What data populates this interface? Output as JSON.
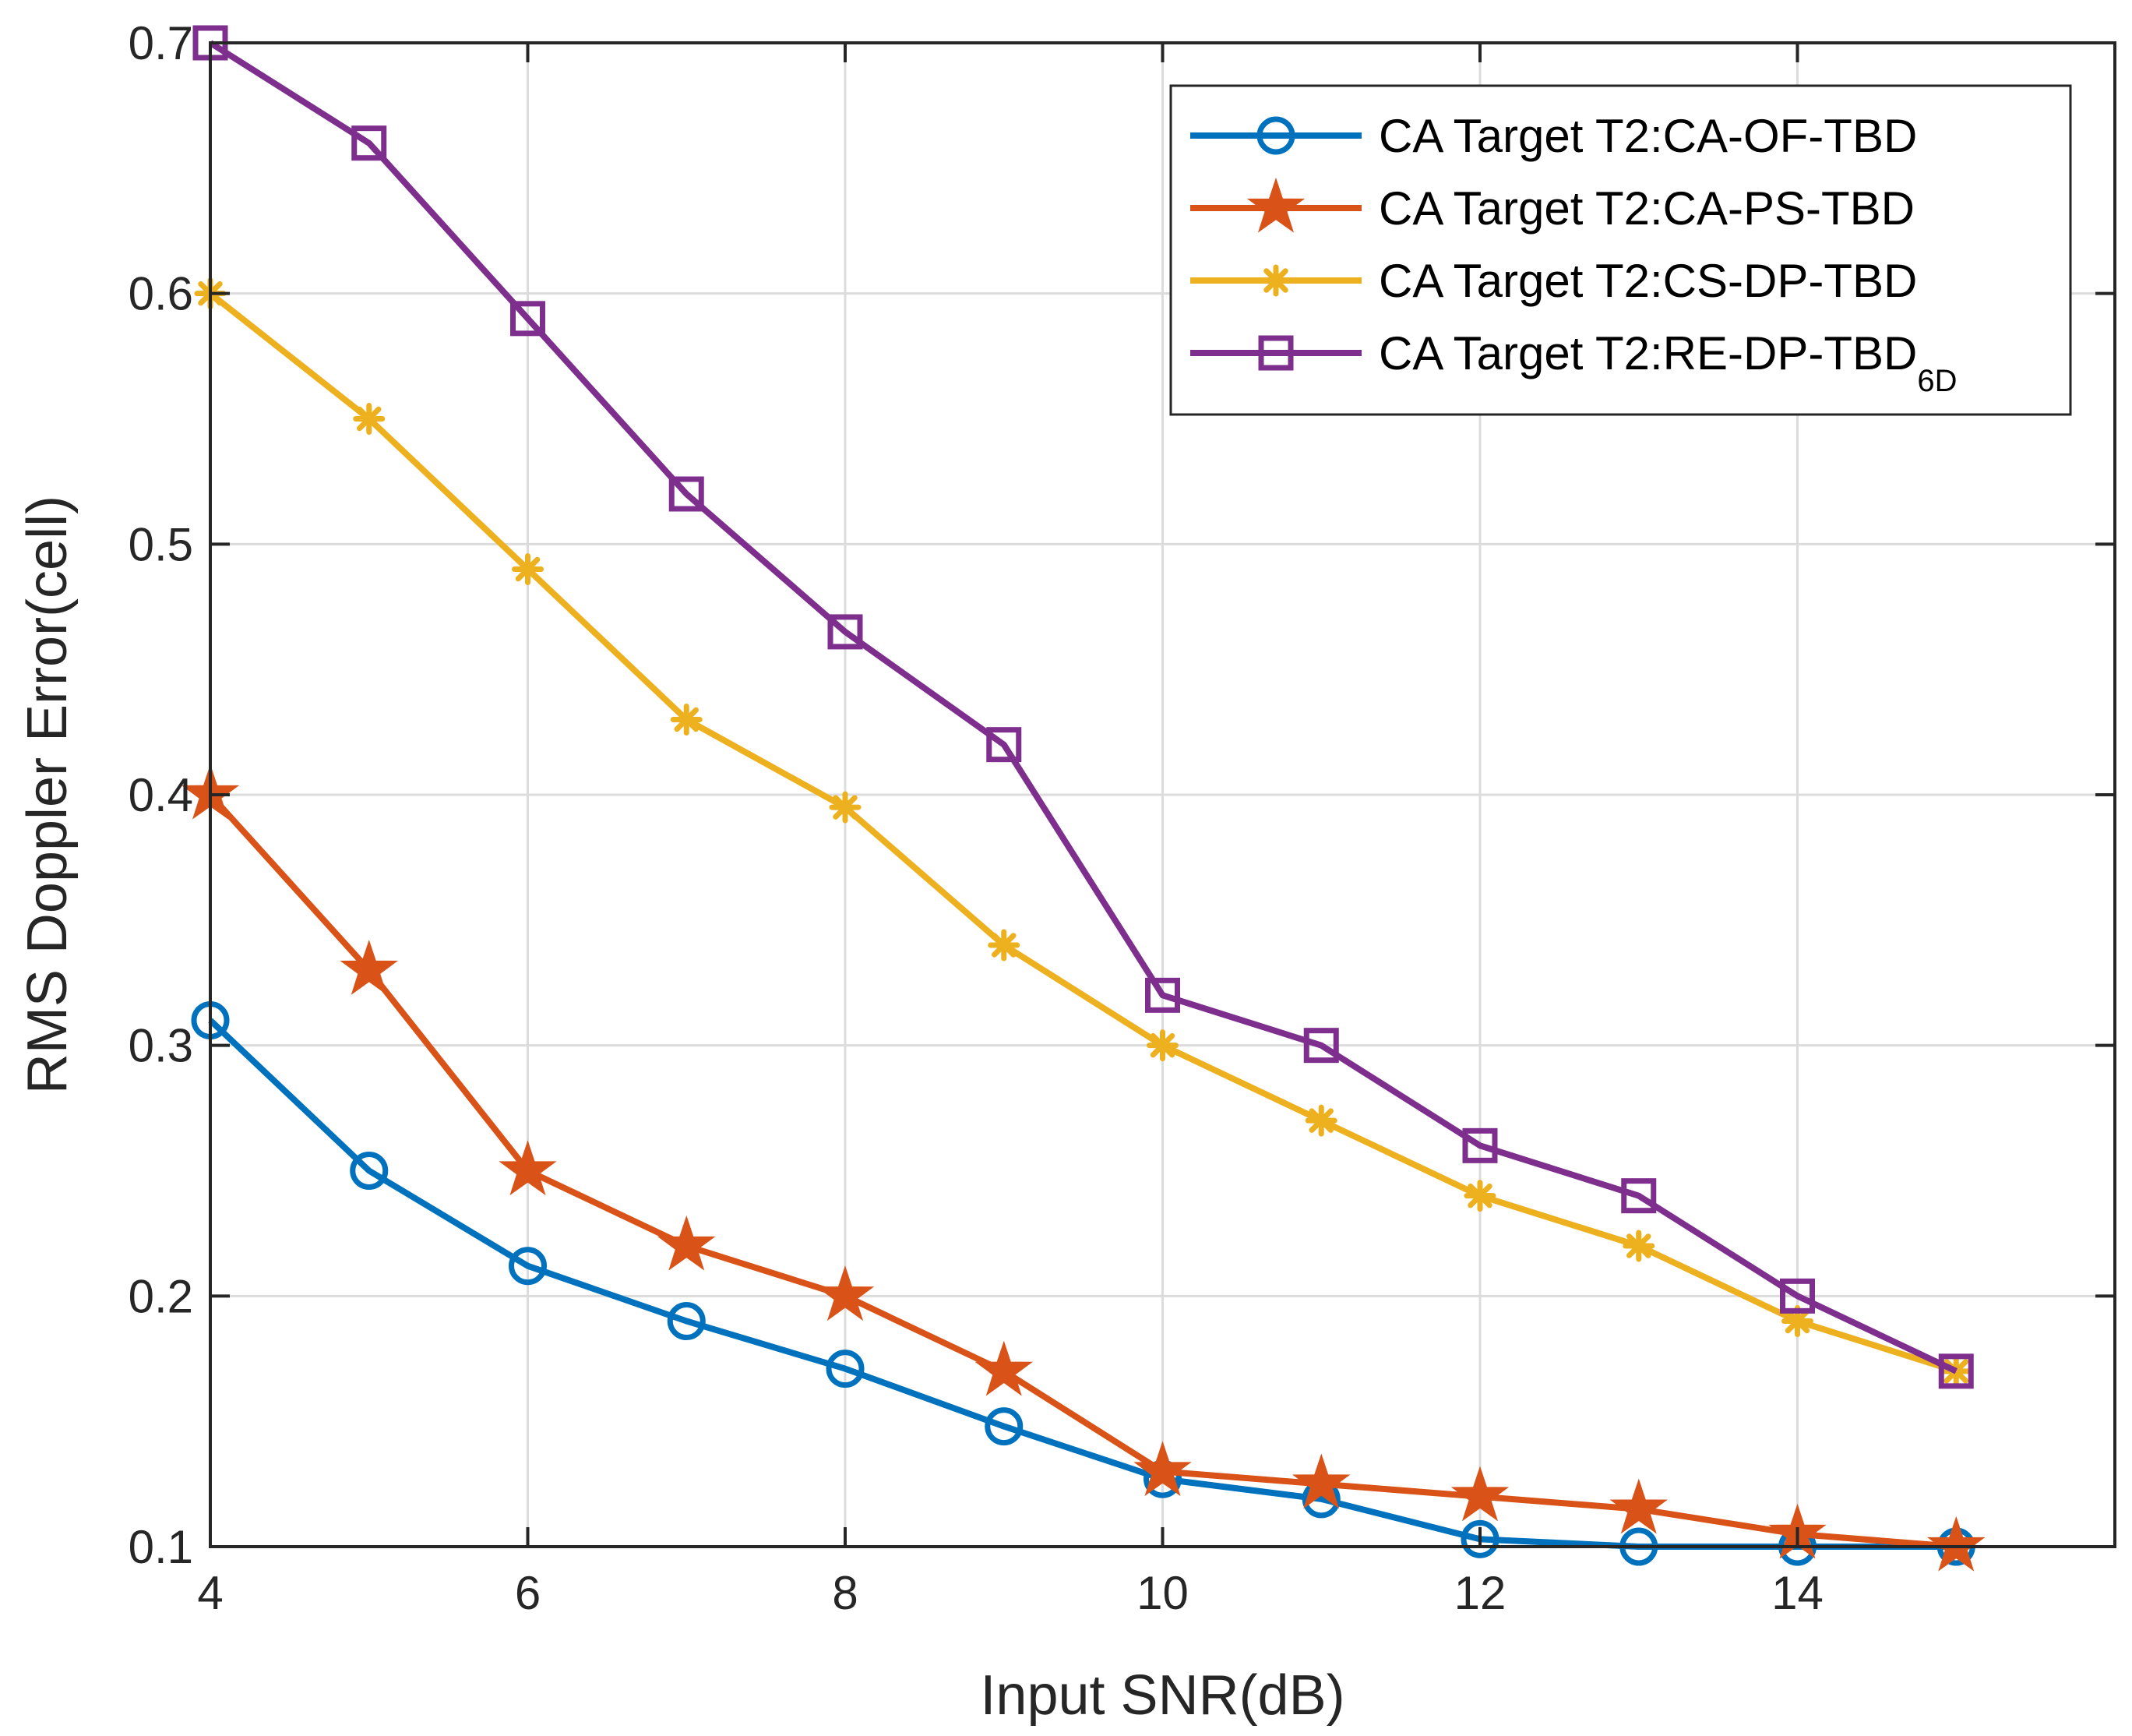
{
  "chart_data": {
    "type": "line",
    "xlabel": "Input SNR(dB)",
    "ylabel": "RMS Doppler Error(cell)",
    "xlim": [
      4,
      16
    ],
    "ylim": [
      0.1,
      0.7
    ],
    "x_ticks": [
      4,
      6,
      8,
      10,
      12,
      14
    ],
    "x_tick_labels": [
      "4",
      "6",
      "8",
      "10",
      "12",
      "14"
    ],
    "y_ticks": [
      0.1,
      0.2,
      0.3,
      0.4,
      0.5,
      0.6,
      0.7
    ],
    "y_tick_labels": [
      "0.1",
      "0.2",
      "0.3",
      "0.4",
      "0.5",
      "0.6",
      "0.7"
    ],
    "grid": true,
    "legend_position": "top-right",
    "x": [
      4,
      5,
      6,
      7,
      8,
      9,
      10,
      11,
      12,
      13,
      14,
      15
    ],
    "series": [
      {
        "name": "CA Target T2:CA-OF-TBD",
        "name_sub": "",
        "color": "#0072BD",
        "marker": "circle",
        "values": [
          0.31,
          0.25,
          0.212,
          0.19,
          0.171,
          0.148,
          0.127,
          0.119,
          0.103,
          0.1,
          0.1,
          0.1
        ]
      },
      {
        "name": "CA Target T2:CA-PS-TBD",
        "name_sub": "",
        "color": "#D95319",
        "marker": "star",
        "values": [
          0.4,
          0.33,
          0.25,
          0.22,
          0.2,
          0.17,
          0.13,
          0.125,
          0.12,
          0.115,
          0.105,
          0.1
        ]
      },
      {
        "name": "CA Target T2:CS-DP-TBD",
        "name_sub": "",
        "color": "#EDB120",
        "marker": "asterisk",
        "values": [
          0.6,
          0.55,
          0.49,
          0.43,
          0.395,
          0.34,
          0.3,
          0.27,
          0.24,
          0.22,
          0.19,
          0.17
        ]
      },
      {
        "name": "CA Target T2:RE-DP-TBD",
        "name_sub": "6D",
        "color": "#7E2F8E",
        "marker": "square",
        "values": [
          0.7,
          0.66,
          0.59,
          0.52,
          0.465,
          0.42,
          0.32,
          0.3,
          0.26,
          0.24,
          0.2,
          0.17
        ]
      }
    ]
  }
}
